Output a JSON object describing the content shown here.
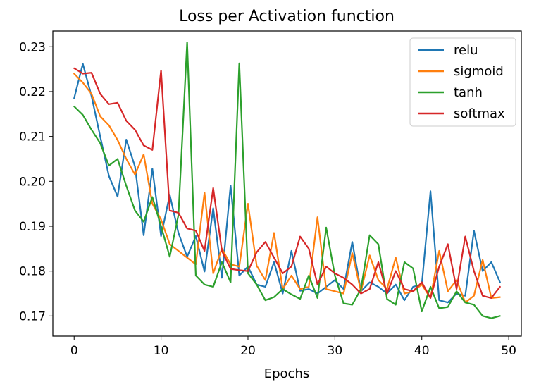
{
  "chart_data": {
    "type": "line",
    "title": "Loss per Activation function",
    "xlabel": "Epochs",
    "ylabel": "",
    "xlim": [
      -2.45,
      51.45
    ],
    "ylim": [
      0.1655,
      0.2335
    ],
    "xticks": [
      0,
      10,
      20,
      30,
      40,
      50
    ],
    "yticks": [
      0.17,
      0.18,
      0.19,
      0.2,
      0.21,
      0.22,
      0.23
    ],
    "ytick_labels": [
      "0.17",
      "0.18",
      "0.19",
      "0.20",
      "0.21",
      "0.22",
      "0.23"
    ],
    "grid": false,
    "legend_position": "top-right",
    "series": [
      {
        "name": "relu",
        "color": "#1f77b4",
        "values": [
          0.2185,
          0.2262,
          0.219,
          0.21,
          0.2012,
          0.1966,
          0.2093,
          0.2033,
          0.188,
          0.2028,
          0.1878,
          0.197,
          0.1885,
          0.1832,
          0.1878,
          0.1799,
          0.194,
          0.1785,
          0.1991,
          0.179,
          0.181,
          0.177,
          0.1765,
          0.182,
          0.175,
          0.1845,
          0.1756,
          0.176,
          0.175,
          0.1765,
          0.178,
          0.176,
          0.1865,
          0.1755,
          0.1775,
          0.1765,
          0.175,
          0.177,
          0.1735,
          0.1765,
          0.177,
          0.1978,
          0.1735,
          0.173,
          0.175,
          0.1745,
          0.189,
          0.18,
          0.182,
          0.1775
        ]
      },
      {
        "name": "sigmoid",
        "color": "#ff7f0e",
        "values": [
          0.224,
          0.222,
          0.2195,
          0.2145,
          0.2125,
          0.2092,
          0.205,
          0.2015,
          0.206,
          0.195,
          0.1915,
          0.186,
          0.1845,
          0.183,
          0.1815,
          0.1975,
          0.1795,
          0.185,
          0.1815,
          0.181,
          0.195,
          0.1812,
          0.178,
          0.1885,
          0.176,
          0.179,
          0.176,
          0.1765,
          0.192,
          0.176,
          0.1755,
          0.175,
          0.184,
          0.1755,
          0.1835,
          0.178,
          0.176,
          0.183,
          0.175,
          0.1755,
          0.177,
          0.174,
          0.1845,
          0.1755,
          0.178,
          0.173,
          0.1745,
          0.1825,
          0.174,
          0.1742
        ]
      },
      {
        "name": "tanh",
        "color": "#2ca02c",
        "values": [
          0.2167,
          0.2148,
          0.2115,
          0.2085,
          0.2035,
          0.205,
          0.199,
          0.1935,
          0.191,
          0.1965,
          0.19,
          0.1832,
          0.1925,
          0.231,
          0.179,
          0.177,
          0.1765,
          0.182,
          0.1775,
          0.2263,
          0.1795,
          0.177,
          0.1735,
          0.1742,
          0.176,
          0.1748,
          0.1738,
          0.179,
          0.174,
          0.1897,
          0.179,
          0.1728,
          0.1725,
          0.176,
          0.188,
          0.186,
          0.1738,
          0.1725,
          0.182,
          0.1806,
          0.171,
          0.1765,
          0.1717,
          0.172,
          0.1755,
          0.173,
          0.1725,
          0.17,
          0.1695,
          0.17
        ]
      },
      {
        "name": "softmax",
        "color": "#d62728",
        "values": [
          0.2252,
          0.224,
          0.2242,
          0.2195,
          0.2172,
          0.2175,
          0.2135,
          0.2115,
          0.208,
          0.207,
          0.2247,
          0.1935,
          0.193,
          0.1895,
          0.189,
          0.1845,
          0.1985,
          0.1845,
          0.1805,
          0.1802,
          0.18,
          0.1842,
          0.1865,
          0.183,
          0.1795,
          0.181,
          0.1877,
          0.185,
          0.177,
          0.181,
          0.1795,
          0.1785,
          0.177,
          0.175,
          0.176,
          0.182,
          0.175,
          0.18,
          0.176,
          0.1755,
          0.1775,
          0.174,
          0.181,
          0.186,
          0.176,
          0.1877,
          0.18,
          0.1745,
          0.174,
          0.1765
        ]
      }
    ]
  }
}
